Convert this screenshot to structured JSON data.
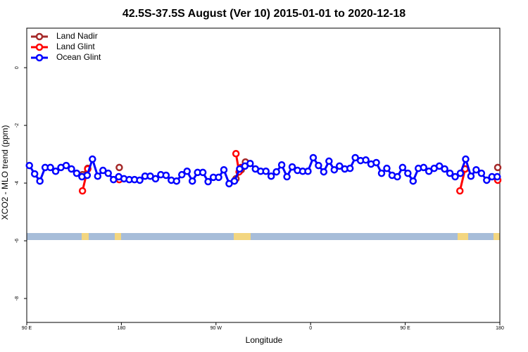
{
  "chart_data": {
    "type": "line",
    "title": "42.5S-37.5S August (Ver 10)   2015-01-01 to 2020-12-18",
    "x_label": "Longitude",
    "y_label": "XCO2 - MLO trend (ppm)",
    "xlim": [
      90,
      540
    ],
    "xticks": [
      {
        "value": 90,
        "label": "90 E"
      },
      180,
      {
        "value": 270,
        "label": "90 W"
      },
      {
        "value": 360,
        "label": "0"
      },
      {
        "value": 450,
        "label": "90 E"
      },
      {
        "value": 540,
        "label": "180"
      }
    ],
    "ylim": [
      -8.83,
      1.37
    ],
    "yticks": [
      0,
      -2,
      -4,
      -6,
      -8
    ],
    "legend": "top-left",
    "series": [
      {
        "name": "Land Nadir",
        "color": "#a52a2a",
        "x": [
          143,
          148,
          null,
          178,
          null,
          289,
          294,
          298,
          null,
          507,
          null,
          538
        ],
        "values": [
          -3.71,
          -3.49,
          null,
          -3.46,
          null,
          -3.85,
          -3.54,
          -3.27,
          null,
          -3.51,
          null,
          -3.46
        ]
      },
      {
        "name": "Land Glint",
        "color": "#ff0000",
        "x": [
          143,
          148,
          null,
          178,
          null,
          289,
          292,
          294,
          null,
          502,
          507,
          null,
          538
        ],
        "values": [
          -4.27,
          -3.51,
          null,
          -3.88,
          null,
          -2.98,
          -3.61,
          -3.46,
          null,
          -4.27,
          -3.51,
          null,
          -3.9
        ]
      },
      {
        "name": "Ocean Glint",
        "color": "#0000ff",
        "x": [
          92.5,
          97.5,
          102.5,
          107.5,
          112.5,
          117.5,
          122.5,
          127.5,
          132.5,
          137.5,
          142.5,
          147.5,
          152.5,
          157.5,
          162.5,
          167.5,
          172.5,
          177.5,
          182.5,
          187.5,
          192.5,
          197.5,
          202.5,
          207.5,
          212.5,
          217.5,
          222.5,
          227.5,
          232.5,
          237.5,
          242.5,
          247.5,
          252.5,
          257.5,
          262.5,
          267.5,
          272.5,
          277.5,
          282.5,
          287.5,
          292.5,
          297.5,
          302.5,
          307.5,
          312.5,
          317.5,
          322.5,
          327.5,
          332.5,
          337.5,
          342.5,
          347.5,
          352.5,
          357.5,
          362.5,
          367.5,
          372.5,
          377.5,
          382.5,
          387.5,
          392.5,
          397.5,
          402.5,
          407.5,
          412.5,
          417.5,
          422.5,
          427.5,
          432.5,
          437.5,
          442.5,
          447.5,
          452.5,
          457.5,
          462.5,
          467.5,
          472.5,
          477.5,
          482.5,
          487.5,
          492.5,
          497.5,
          502.5,
          507.5,
          512.5,
          517.5,
          522.5,
          527.5,
          532.5,
          537.5
        ],
        "values": [
          -3.39,
          -3.68,
          -3.93,
          -3.46,
          -3.46,
          -3.59,
          -3.46,
          -3.39,
          -3.51,
          -3.66,
          -3.78,
          -3.73,
          -3.17,
          -3.76,
          -3.56,
          -3.66,
          -3.88,
          -3.78,
          -3.85,
          -3.88,
          -3.88,
          -3.9,
          -3.76,
          -3.76,
          -3.85,
          -3.71,
          -3.73,
          -3.9,
          -3.93,
          -3.71,
          -3.59,
          -3.93,
          -3.63,
          -3.63,
          -3.95,
          -3.8,
          -3.8,
          -3.54,
          -4.02,
          -3.93,
          -3.51,
          -3.41,
          -3.32,
          -3.51,
          -3.59,
          -3.59,
          -3.76,
          -3.61,
          -3.37,
          -3.78,
          -3.44,
          -3.56,
          -3.59,
          -3.59,
          -3.12,
          -3.39,
          -3.61,
          -3.24,
          -3.54,
          -3.41,
          -3.51,
          -3.49,
          -3.12,
          -3.22,
          -3.2,
          -3.34,
          -3.29,
          -3.66,
          -3.49,
          -3.73,
          -3.78,
          -3.46,
          -3.66,
          -3.93,
          -3.49,
          -3.46,
          -3.59,
          -3.49,
          -3.41,
          -3.51,
          -3.66,
          -3.78,
          -3.66,
          -3.17,
          -3.76,
          -3.54,
          -3.66,
          -3.9,
          -3.78,
          -3.78
        ]
      }
    ]
  }
}
